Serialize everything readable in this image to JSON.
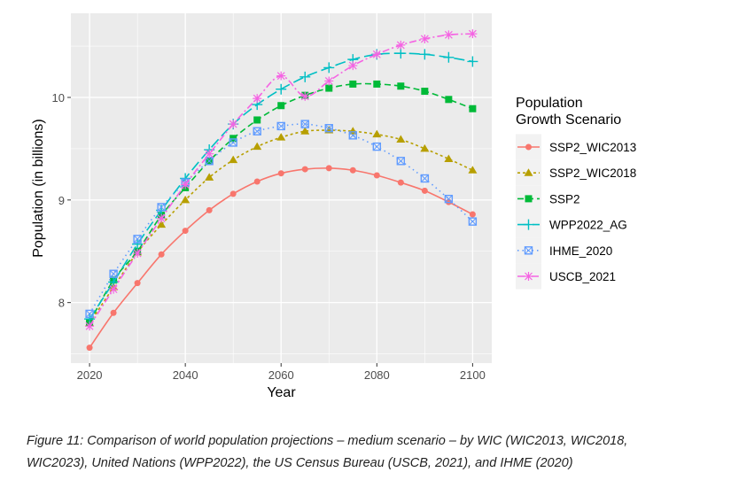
{
  "chart_data": {
    "type": "line",
    "xlabel": "Year",
    "ylabel": "Population (in billions)",
    "xlim": [
      2016.1,
      2104
    ],
    "ylim": [
      7.41,
      10.82
    ],
    "xticks": [
      2020,
      2040,
      2060,
      2080,
      2100
    ],
    "yticks": [
      8,
      9,
      10
    ],
    "grid": true,
    "legend_title": [
      "Population",
      "Growth Scenario"
    ],
    "legend_placement": "right",
    "x": [
      2020,
      2025,
      2030,
      2035,
      2040,
      2045,
      2050,
      2055,
      2060,
      2065,
      2070,
      2075,
      2080,
      2085,
      2090,
      2095,
      2100
    ],
    "series": [
      {
        "name": "SSP2_WIC2013",
        "color": "#F8766D",
        "shape": "circle",
        "dash": "",
        "values": [
          7.56,
          7.9,
          8.19,
          8.47,
          8.7,
          8.9,
          9.06,
          9.18,
          9.26,
          9.3,
          9.31,
          9.29,
          9.24,
          9.17,
          9.09,
          8.98,
          8.86
        ]
      },
      {
        "name": "SSP2_WIC2018",
        "color": "#B79F00",
        "shape": "triangle",
        "dash": "3,3",
        "values": [
          7.8,
          8.15,
          8.49,
          8.76,
          9.0,
          9.22,
          9.39,
          9.52,
          9.61,
          9.67,
          9.68,
          9.67,
          9.64,
          9.59,
          9.5,
          9.4,
          9.29
        ]
      },
      {
        "name": "SSP2",
        "color": "#00BA38",
        "shape": "square",
        "dash": "7,4",
        "values": [
          7.81,
          8.22,
          8.5,
          8.85,
          9.12,
          9.38,
          9.6,
          9.78,
          9.92,
          10.02,
          10.09,
          10.13,
          10.13,
          10.11,
          10.06,
          9.98,
          9.89
        ]
      },
      {
        "name": "WPP2022_AG",
        "color": "#00BFC4",
        "shape": "plus",
        "dash": "12,5",
        "values": [
          7.84,
          8.2,
          8.57,
          8.9,
          9.21,
          9.49,
          9.74,
          9.93,
          10.08,
          10.2,
          10.29,
          10.37,
          10.42,
          10.43,
          10.42,
          10.39,
          10.35
        ]
      },
      {
        "name": "IHME_2020",
        "color": "#619CFF",
        "shape": "boxcross",
        "dash": "1.5,4",
        "values": [
          7.89,
          8.28,
          8.62,
          8.93,
          9.17,
          9.38,
          9.56,
          9.67,
          9.72,
          9.74,
          9.7,
          9.63,
          9.52,
          9.38,
          9.21,
          9.01,
          8.79
        ]
      },
      {
        "name": "USCB_2021",
        "color": "#F564E3",
        "shape": "asterisk",
        "dash": "8,3,2,3",
        "values": [
          7.77,
          8.13,
          8.48,
          8.82,
          9.15,
          9.45,
          9.74,
          9.99,
          10.21,
          10.01,
          10.16,
          10.31,
          10.42,
          10.51,
          10.57,
          10.61,
          10.62
        ]
      }
    ]
  },
  "caption": {
    "line1": "Figure  11: Comparison of world population projections – medium scenario – by WIC (WIC2013, WIC2018,",
    "line2": "WIC2023), United Nations (WPP2022), the US Census Bureau (USCB, 2021), and IHME (2020)"
  }
}
